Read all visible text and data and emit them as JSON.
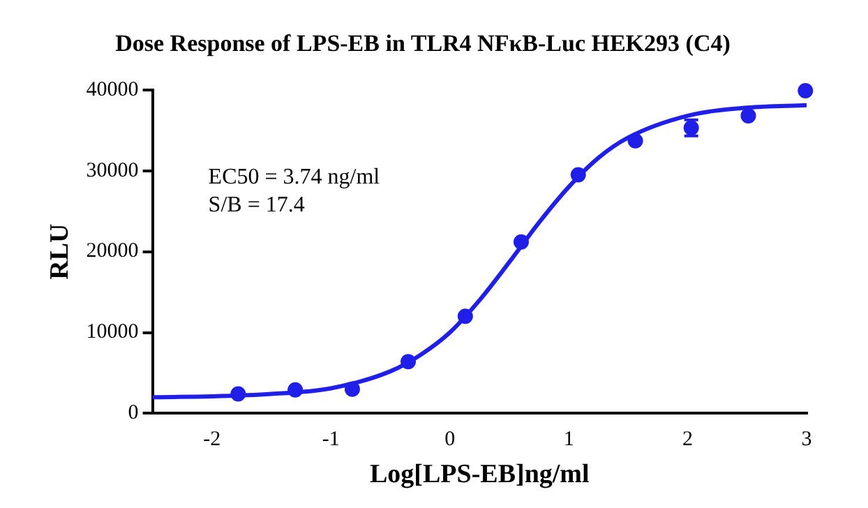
{
  "chart_data": {
    "type": "scatter",
    "title": "Dose Response of LPS-EB in TLR4 NFκB-Luc HEK293 (C4)",
    "xlabel": "Log[LPS-EB]ng/ml",
    "ylabel": "RLU",
    "annotations": [
      "EC50 = 3.74 ng/ml",
      "S/B = 17.4"
    ],
    "series": [
      {
        "type": "scatter",
        "color": "#1f1fe8",
        "marker": "circle",
        "x": [
          -1.78,
          -1.3,
          -0.82,
          -0.35,
          0.13,
          0.6,
          1.08,
          1.56,
          2.03,
          2.51,
          2.99
        ],
        "values": [
          2400,
          2900,
          3000,
          6400,
          12000,
          21200,
          29500,
          33700,
          35300,
          36800,
          39900
        ],
        "errors": [
          null,
          null,
          null,
          null,
          null,
          null,
          null,
          null,
          1000,
          null,
          null
        ]
      },
      {
        "type": "line",
        "color": "#1f1fe8",
        "marker": "none",
        "line_style": "solid",
        "x": [
          -2.5,
          -2,
          -1.5,
          -1,
          -0.5,
          -0.25,
          0,
          0.25,
          0.5,
          0.75,
          1,
          1.25,
          1.5,
          2,
          2.5,
          3
        ],
        "values": [
          2000,
          2100,
          2400,
          3100,
          5200,
          7200,
          10000,
          14000,
          18700,
          23600,
          28000,
          31600,
          34100,
          36800,
          37800,
          38100
        ]
      }
    ],
    "xlim": [
      -2.5,
      3
    ],
    "xticks": [
      -2,
      -1,
      0,
      1,
      2,
      3
    ],
    "ylim": [
      0,
      40000
    ],
    "yticks": [
      0,
      10000,
      20000,
      30000,
      40000
    ],
    "grid": false,
    "legend": false
  }
}
